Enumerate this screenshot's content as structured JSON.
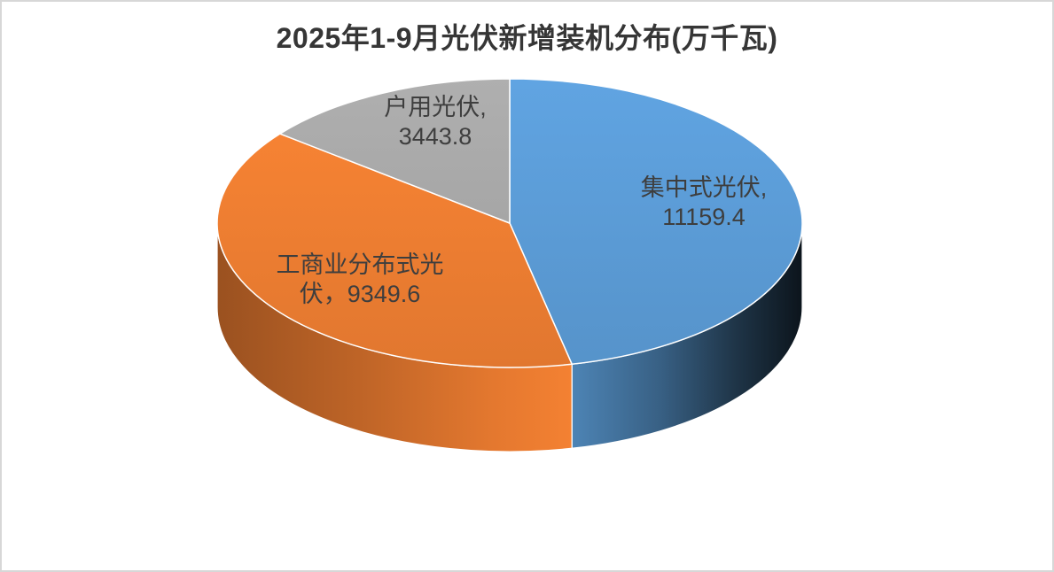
{
  "title": "2025年1-9月光伏新增装机分布(万千瓦)",
  "unit": "万千瓦",
  "canvas": {
    "background": "#FFFFFF",
    "border_color": "#D7D7D7",
    "title_color": "#363636",
    "label_color": "#3E3E3E"
  },
  "chart_data": {
    "type": "pie",
    "projection": "3d",
    "title": "2025年1-9月光伏新增装机分布(万千瓦)",
    "unit": "万千瓦",
    "direction": "clockwise",
    "start_angle_deg": 0,
    "legend_position": "none",
    "labels_on_chart": true,
    "categories": [
      "集中式光伏",
      "工商业分布式光伏",
      "户用光伏"
    ],
    "values": [
      11159.4,
      9349.6,
      3443.8
    ],
    "colors": [
      "#5B9BD5",
      "#ED7D31",
      "#A5A5A5"
    ],
    "slices": [
      {
        "label": "集中式光伏",
        "value": 11159.4,
        "color": "#5B9BD5",
        "label_lines": [
          "集中式光伏,",
          "11159.4"
        ]
      },
      {
        "label": "工商业分布式光伏",
        "value": 9349.6,
        "color": "#ED7D31",
        "label_lines": [
          "工商业分布式光",
          "伏，9349.6"
        ]
      },
      {
        "label": "户用光伏",
        "value": 3443.8,
        "color": "#A5A5A5",
        "label_lines": [
          "户用光伏,",
          "3443.8"
        ]
      }
    ]
  }
}
